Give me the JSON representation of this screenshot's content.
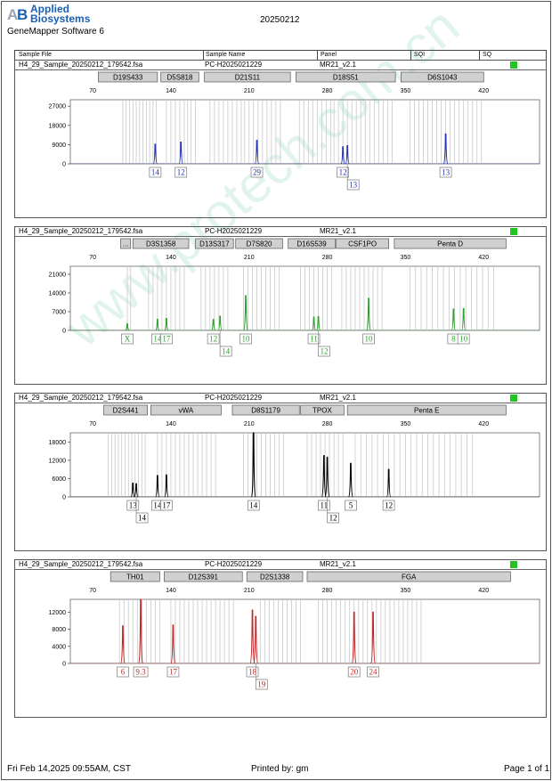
{
  "header": {
    "brand_line1": "Applied",
    "brand_line2": "Biosystems",
    "software": "GeneMapper Software 6",
    "date": "20250212",
    "colors": {
      "brand": "#1a5fb4",
      "quality_flag": "#22c422"
    }
  },
  "table_header": [
    "Sample File",
    "Sample Name",
    "Panel",
    "SQI",
    "SQ"
  ],
  "footer": {
    "timestamp": "Fri Feb 14,2025 09:55AM, CST",
    "printed_by": "Printed by: gm",
    "page": "Page 1 of 1"
  },
  "chart_data": [
    {
      "type": "line",
      "sample_file": "H4_29_Sample_20250212_179542.fsa",
      "sample_name": "PC-H2025021229",
      "panel": "MR21_v2.1",
      "color": "#2233aa",
      "xlim": [
        50,
        470
      ],
      "x_ticks": [
        70,
        140,
        210,
        280,
        350,
        420
      ],
      "ylim": [
        0,
        30000
      ],
      "y_ticks": [
        0,
        9000,
        18000,
        27000
      ],
      "markers": [
        {
          "name": "D19S433",
          "start": 75,
          "end": 128
        },
        {
          "name": "D5S818",
          "start": 131,
          "end": 165
        },
        {
          "name": "D21S11",
          "start": 170,
          "end": 247
        },
        {
          "name": "D18S51",
          "start": 252,
          "end": 341
        },
        {
          "name": "D6S1043",
          "start": 346,
          "end": 420
        }
      ],
      "bins": [
        97,
        100,
        103,
        106,
        109,
        112,
        115,
        118,
        121,
        124,
        127,
        136,
        140,
        144,
        148,
        152,
        155,
        158,
        162,
        175,
        179,
        183,
        187,
        191,
        195,
        199,
        203,
        206,
        210,
        214,
        218,
        222,
        226,
        230,
        234,
        238,
        255,
        259,
        263,
        267,
        271,
        275,
        279,
        283,
        286,
        290,
        294,
        298,
        302,
        306,
        310,
        314,
        318,
        322,
        326,
        330,
        334,
        338,
        354,
        358,
        362,
        366,
        370,
        374,
        378,
        382,
        386,
        390,
        394,
        398,
        402,
        406,
        410,
        414,
        418
      ],
      "peaks": [
        {
          "x": 126,
          "height": 9200
        },
        {
          "x": 149,
          "height": 10200
        },
        {
          "x": 217,
          "height": 11000
        },
        {
          "x": 294,
          "height": 8000
        },
        {
          "x": 298,
          "height": 8500
        },
        {
          "x": 386,
          "height": 14000
        }
      ],
      "alleles": [
        {
          "label": "14",
          "x": 126,
          "row": 0
        },
        {
          "label": "12",
          "x": 149,
          "row": 0
        },
        {
          "label": "29",
          "x": 217,
          "row": 0
        },
        {
          "label": "12",
          "x": 294,
          "row": 0
        },
        {
          "label": "13",
          "x": 298,
          "row": 1
        },
        {
          "label": "13",
          "x": 386,
          "row": 0
        }
      ]
    },
    {
      "type": "line",
      "sample_file": "H4_29_Sample_20250212_179542.fsa",
      "sample_name": "PC-H2025021229",
      "panel": "MR21_v2.1",
      "color": "#2aa02a",
      "xlim": [
        50,
        470
      ],
      "x_ticks": [
        70,
        140,
        210,
        280,
        350,
        420
      ],
      "ylim": [
        0,
        24000
      ],
      "y_ticks": [
        0,
        7000,
        14000,
        21000
      ],
      "markers": [
        {
          "name": "...",
          "start": 95,
          "end": 104
        },
        {
          "name": "D3S1358",
          "start": 106,
          "end": 156
        },
        {
          "name": "D13S317",
          "start": 162,
          "end": 196
        },
        {
          "name": "D7S820",
          "start": 198,
          "end": 240
        },
        {
          "name": "D16S539",
          "start": 245,
          "end": 287
        },
        {
          "name": "CSF1PO",
          "start": 288,
          "end": 335
        },
        {
          "name": "Penta D",
          "start": 340,
          "end": 440
        }
      ],
      "bins": [
        101,
        104,
        120,
        124,
        128,
        132,
        136,
        140,
        144,
        148,
        152,
        167,
        171,
        175,
        179,
        183,
        187,
        191,
        205,
        209,
        213,
        217,
        221,
        225,
        229,
        233,
        237,
        256,
        260,
        264,
        268,
        272,
        276,
        280,
        284,
        293,
        297,
        301,
        305,
        309,
        313,
        317,
        321,
        325,
        329,
        354,
        359,
        364,
        369,
        374,
        379,
        384,
        389,
        394,
        399,
        404,
        409,
        414,
        419,
        424,
        429
      ],
      "peaks": [
        {
          "x": 101,
          "height": 2500
        },
        {
          "x": 128,
          "height": 4200
        },
        {
          "x": 136,
          "height": 4500
        },
        {
          "x": 178,
          "height": 4100
        },
        {
          "x": 184,
          "height": 5300
        },
        {
          "x": 207,
          "height": 13000
        },
        {
          "x": 268,
          "height": 5000
        },
        {
          "x": 272,
          "height": 5200
        },
        {
          "x": 317,
          "height": 12000
        },
        {
          "x": 393,
          "height": 8000
        },
        {
          "x": 402,
          "height": 8200
        }
      ],
      "alleles": [
        {
          "label": "X",
          "x": 101,
          "row": 0
        },
        {
          "label": "14",
          "x": 128,
          "row": 0
        },
        {
          "label": "17",
          "x": 136,
          "row": 0
        },
        {
          "label": "12",
          "x": 178,
          "row": 0
        },
        {
          "label": "14",
          "x": 184,
          "row": 1
        },
        {
          "label": "10",
          "x": 207,
          "row": 0
        },
        {
          "label": "11",
          "x": 268,
          "row": 0
        },
        {
          "label": "12",
          "x": 272,
          "row": 1
        },
        {
          "label": "10",
          "x": 317,
          "row": 0
        },
        {
          "label": "8",
          "x": 393,
          "row": 0
        },
        {
          "label": "10",
          "x": 402,
          "row": 0
        }
      ]
    },
    {
      "type": "line",
      "sample_file": "H4_29_Sample_20250212_179542.fsa",
      "sample_name": "PC-H2025021229",
      "panel": "MR21_v2.1",
      "color": "#000000",
      "xlim": [
        50,
        470
      ],
      "x_ticks": [
        70,
        140,
        210,
        280,
        350,
        420
      ],
      "ylim": [
        0,
        21000
      ],
      "y_ticks": [
        0,
        6000,
        12000,
        18000
      ],
      "markers": [
        {
          "name": "D2S441",
          "start": 80,
          "end": 119
        },
        {
          "name": "vWA",
          "start": 122,
          "end": 185
        },
        {
          "name": "D8S1179",
          "start": 195,
          "end": 255
        },
        {
          "name": "TPOX",
          "start": 256,
          "end": 295
        },
        {
          "name": "Penta E",
          "start": 298,
          "end": 440
        }
      ],
      "bins": [
        84,
        87,
        90,
        93,
        96,
        99,
        102,
        105,
        108,
        111,
        114,
        117,
        128,
        132,
        136,
        140,
        144,
        148,
        152,
        156,
        160,
        164,
        168,
        172,
        176,
        180,
        205,
        209,
        213,
        217,
        221,
        225,
        229,
        233,
        237,
        241,
        262,
        266,
        270,
        274,
        278,
        282,
        286,
        290,
        294,
        305,
        310,
        315,
        320,
        325,
        330,
        335,
        340,
        345,
        350,
        355,
        360,
        365,
        370,
        375,
        380,
        385,
        390,
        395,
        400,
        405,
        410
      ],
      "peaks": [
        {
          "x": 106,
          "height": 4500
        },
        {
          "x": 109,
          "height": 4300
        },
        {
          "x": 128,
          "height": 7000
        },
        {
          "x": 136,
          "height": 7200
        },
        {
          "x": 214,
          "height": 21000
        },
        {
          "x": 277,
          "height": 13500
        },
        {
          "x": 280,
          "height": 13000
        },
        {
          "x": 301,
          "height": 11000
        },
        {
          "x": 335,
          "height": 9000
        }
      ],
      "alleles": [
        {
          "label": "13",
          "x": 106,
          "row": 0
        },
        {
          "label": "14",
          "x": 109,
          "row": 1
        },
        {
          "label": "14",
          "x": 128,
          "row": 0
        },
        {
          "label": "17",
          "x": 136,
          "row": 0
        },
        {
          "label": "14",
          "x": 214,
          "row": 0
        },
        {
          "label": "11",
          "x": 277,
          "row": 0
        },
        {
          "label": "12",
          "x": 280,
          "row": 1
        },
        {
          "label": "5",
          "x": 301,
          "row": 0
        },
        {
          "label": "12",
          "x": 335,
          "row": 0
        }
      ]
    },
    {
      "type": "line",
      "sample_file": "H4_29_Sample_20250212_179542.fsa",
      "sample_name": "PC-H2025021229",
      "panel": "MR21_v2.1",
      "color": "#c0282a",
      "xlim": [
        50,
        470
      ],
      "x_ticks": [
        70,
        140,
        210,
        280,
        350,
        420
      ],
      "ylim": [
        0,
        15000
      ],
      "y_ticks": [
        0,
        4000,
        8000,
        12000
      ],
      "markers": [
        {
          "name": "TH01",
          "start": 86,
          "end": 130
        },
        {
          "name": "D12S391",
          "start": 134,
          "end": 204
        },
        {
          "name": "D2S1338",
          "start": 208,
          "end": 258
        },
        {
          "name": "FGA",
          "start": 262,
          "end": 444
        }
      ],
      "bins": [
        94,
        98,
        102,
        106,
        110,
        114,
        118,
        122,
        126,
        130,
        140,
        144,
        148,
        152,
        156,
        160,
        164,
        168,
        172,
        176,
        180,
        184,
        188,
        192,
        196,
        220,
        224,
        228,
        232,
        236,
        240,
        244,
        248,
        252,
        256,
        272,
        276,
        280,
        284,
        288,
        292,
        296,
        300,
        304,
        308,
        312,
        316,
        320,
        324,
        328,
        332,
        336,
        340,
        344,
        348,
        352,
        356,
        360,
        364
      ],
      "peaks": [
        {
          "x": 97,
          "height": 8800
        },
        {
          "x": 113,
          "height": 15000
        },
        {
          "x": 142,
          "height": 9000
        },
        {
          "x": 213,
          "height": 12500
        },
        {
          "x": 216,
          "height": 11000
        },
        {
          "x": 304,
          "height": 12000
        },
        {
          "x": 321,
          "height": 12000
        }
      ],
      "alleles": [
        {
          "label": "6",
          "x": 97,
          "row": 0
        },
        {
          "label": "9.3",
          "x": 113,
          "row": 0
        },
        {
          "label": "17",
          "x": 142,
          "row": 0
        },
        {
          "label": "18",
          "x": 213,
          "row": 0
        },
        {
          "label": "19",
          "x": 216,
          "row": 1
        },
        {
          "label": "20",
          "x": 304,
          "row": 0
        },
        {
          "label": "24",
          "x": 321,
          "row": 0
        }
      ]
    }
  ]
}
